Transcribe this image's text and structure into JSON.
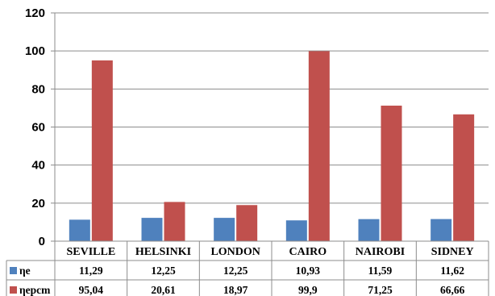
{
  "chart_data": {
    "type": "bar",
    "categories": [
      "SEVILLE",
      "HELSINKI",
      "LONDON",
      "CAIRO",
      "NAIROBI",
      "SIDNEY"
    ],
    "series": [
      {
        "name": "ηe",
        "values": [
          11.29,
          12.25,
          12.25,
          10.93,
          11.59,
          11.62
        ],
        "labels": [
          "11,29",
          "12,25",
          "12,25",
          "10,93",
          "11,59",
          "11,62"
        ],
        "color": "#4f81bd"
      },
      {
        "name": "ηepcm",
        "values": [
          95.04,
          20.61,
          18.97,
          99.9,
          71.25,
          66.66
        ],
        "labels": [
          "95,04",
          "20,61",
          "18,97",
          "99,9",
          "71,25",
          "66,66"
        ],
        "color": "#c0504d"
      }
    ],
    "yticks": [
      "0",
      "20",
      "40",
      "60",
      "80",
      "100",
      "120"
    ],
    "ylim": [
      0,
      120
    ],
    "grid": true,
    "legend": "data-table"
  }
}
